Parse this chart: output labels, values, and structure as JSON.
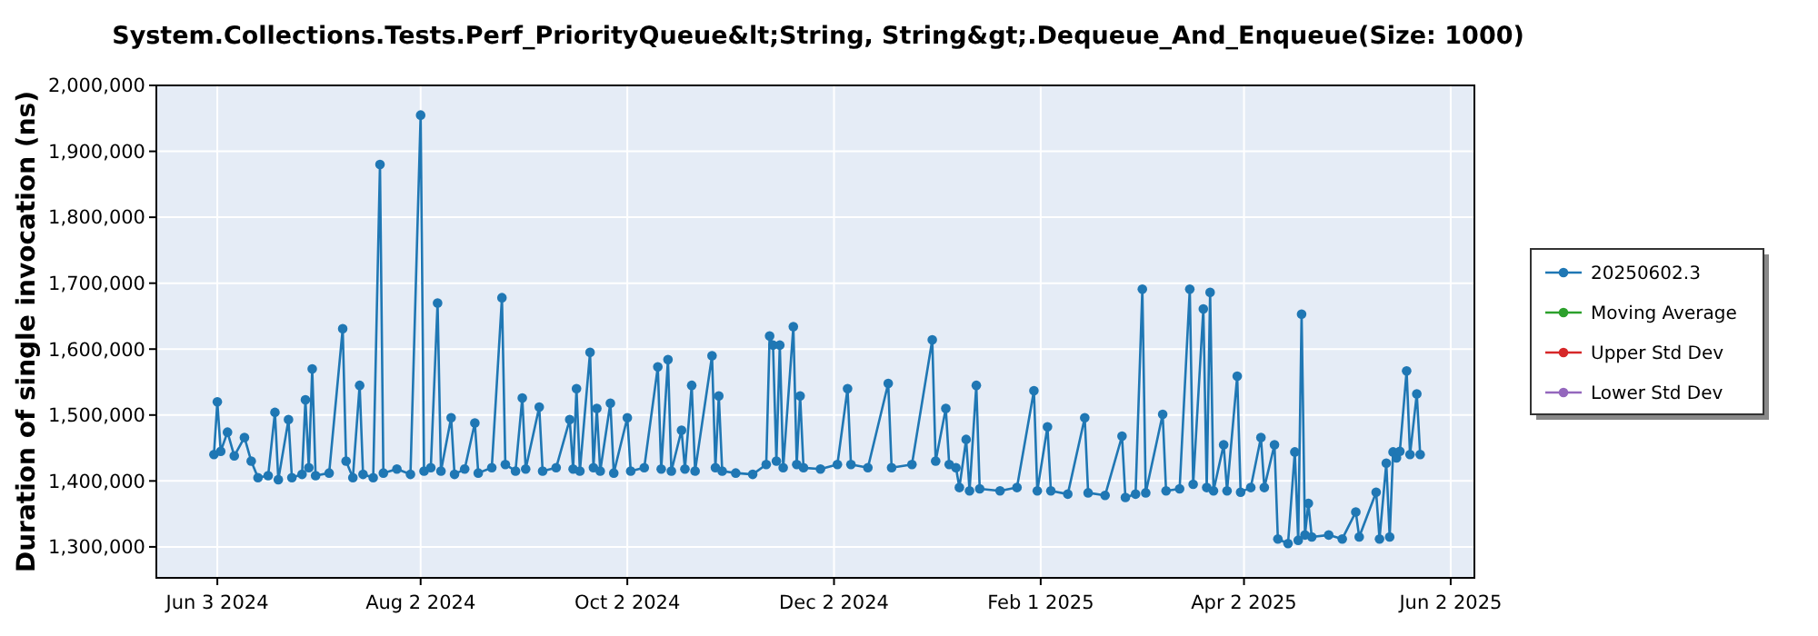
{
  "chart_data": {
    "type": "line",
    "title": "System.Collections.Tests.Perf_PriorityQueue&lt;String, String&gt;.Dequeue_And_Enqueue(Size: 1000)",
    "ylabel": "Duration of single invocation (ns)",
    "xlim": [
      "2024-05-16",
      "2025-06-09"
    ],
    "xticks": [
      {
        "value": "2024-06-03",
        "label": "Jun 3 2024"
      },
      {
        "value": "2024-08-02",
        "label": "Aug 2 2024"
      },
      {
        "value": "2024-10-02",
        "label": "Oct 2 2024"
      },
      {
        "value": "2024-12-02",
        "label": "Dec 2 2024"
      },
      {
        "value": "2025-02-01",
        "label": "Feb 1 2025"
      },
      {
        "value": "2025-04-02",
        "label": "Apr 2 2025"
      },
      {
        "value": "2025-06-02",
        "label": "Jun 2 2025"
      }
    ],
    "ylim": [
      1253000,
      2000000
    ],
    "yticks": [
      {
        "value": 1300000,
        "label": "1,300,000"
      },
      {
        "value": 1400000,
        "label": "1,400,000"
      },
      {
        "value": 1500000,
        "label": "1,500,000"
      },
      {
        "value": 1600000,
        "label": "1,600,000"
      },
      {
        "value": 1700000,
        "label": "1,700,000"
      },
      {
        "value": 1800000,
        "label": "1,800,000"
      },
      {
        "value": 1900000,
        "label": "1,900,000"
      },
      {
        "value": 2000000,
        "label": "2,000,000"
      }
    ],
    "grid": true,
    "legend": "right",
    "marker": "circle",
    "line_style": "solid",
    "series": [
      {
        "name": "20250602.3",
        "color": "#1f77b4",
        "x": [
          "2024-06-02",
          "2024-06-03",
          "2024-06-04",
          "2024-06-06",
          "2024-06-08",
          "2024-06-11",
          "2024-06-13",
          "2024-06-15",
          "2024-06-18",
          "2024-06-20",
          "2024-06-21",
          "2024-06-24",
          "2024-06-25",
          "2024-06-28",
          "2024-06-29",
          "2024-06-30",
          "2024-07-01",
          "2024-07-02",
          "2024-07-06",
          "2024-07-10",
          "2024-07-11",
          "2024-07-13",
          "2024-07-15",
          "2024-07-16",
          "2024-07-19",
          "2024-07-21",
          "2024-07-22",
          "2024-07-26",
          "2024-07-30",
          "2024-08-02",
          "2024-08-03",
          "2024-08-05",
          "2024-08-07",
          "2024-08-08",
          "2024-08-11",
          "2024-08-12",
          "2024-08-15",
          "2024-08-18",
          "2024-08-19",
          "2024-08-23",
          "2024-08-26",
          "2024-08-27",
          "2024-08-30",
          "2024-09-01",
          "2024-09-02",
          "2024-09-06",
          "2024-09-07",
          "2024-09-11",
          "2024-09-15",
          "2024-09-16",
          "2024-09-17",
          "2024-09-18",
          "2024-09-21",
          "2024-09-22",
          "2024-09-23",
          "2024-09-24",
          "2024-09-27",
          "2024-09-28",
          "2024-10-02",
          "2024-10-03",
          "2024-10-07",
          "2024-10-11",
          "2024-10-12",
          "2024-10-14",
          "2024-10-15",
          "2024-10-18",
          "2024-10-19",
          "2024-10-21",
          "2024-10-22",
          "2024-10-27",
          "2024-10-28",
          "2024-10-29",
          "2024-10-30",
          "2024-11-03",
          "2024-11-08",
          "2024-11-12",
          "2024-11-13",
          "2024-11-14",
          "2024-11-15",
          "2024-11-16",
          "2024-11-17",
          "2024-11-20",
          "2024-11-21",
          "2024-11-22",
          "2024-11-23",
          "2024-11-28",
          "2024-12-03",
          "2024-12-06",
          "2024-12-07",
          "2024-12-12",
          "2024-12-18",
          "2024-12-19",
          "2024-12-25",
          "2024-12-31",
          "2025-01-01",
          "2025-01-04",
          "2025-01-05",
          "2025-01-07",
          "2025-01-08",
          "2025-01-10",
          "2025-01-11",
          "2025-01-13",
          "2025-01-14",
          "2025-01-20",
          "2025-01-25",
          "2025-01-30",
          "2025-01-31",
          "2025-02-03",
          "2025-02-04",
          "2025-02-09",
          "2025-02-14",
          "2025-02-15",
          "2025-02-20",
          "2025-02-25",
          "2025-02-26",
          "2025-03-01",
          "2025-03-03",
          "2025-03-04",
          "2025-03-09",
          "2025-03-10",
          "2025-03-14",
          "2025-03-17",
          "2025-03-18",
          "2025-03-21",
          "2025-03-22",
          "2025-03-23",
          "2025-03-24",
          "2025-03-27",
          "2025-03-28",
          "2025-03-31",
          "2025-04-01",
          "2025-04-04",
          "2025-04-07",
          "2025-04-08",
          "2025-04-11",
          "2025-04-12",
          "2025-04-15",
          "2025-04-17",
          "2025-04-18",
          "2025-04-19",
          "2025-04-20",
          "2025-04-21",
          "2025-04-22",
          "2025-04-27",
          "2025-05-01",
          "2025-05-05",
          "2025-05-06",
          "2025-05-11",
          "2025-05-12",
          "2025-05-14",
          "2025-05-15",
          "2025-05-16",
          "2025-05-17",
          "2025-05-18",
          "2025-05-20",
          "2025-05-21",
          "2025-05-23",
          "2025-05-24"
        ],
        "values": [
          1440000,
          1520000,
          1445000,
          1474000,
          1438000,
          1466000,
          1430000,
          1405000,
          1408000,
          1504000,
          1402000,
          1493000,
          1405000,
          1410000,
          1523000,
          1420000,
          1570000,
          1408000,
          1412000,
          1631000,
          1430000,
          1405000,
          1545000,
          1410000,
          1405000,
          1880000,
          1412000,
          1418000,
          1410000,
          1955000,
          1415000,
          1420000,
          1670000,
          1415000,
          1496000,
          1410000,
          1418000,
          1488000,
          1412000,
          1420000,
          1678000,
          1425000,
          1415000,
          1526000,
          1418000,
          1512000,
          1415000,
          1420000,
          1493000,
          1418000,
          1540000,
          1415000,
          1595000,
          1420000,
          1510000,
          1415000,
          1518000,
          1412000,
          1496000,
          1415000,
          1420000,
          1573000,
          1418000,
          1584000,
          1415000,
          1477000,
          1418000,
          1545000,
          1415000,
          1590000,
          1420000,
          1529000,
          1415000,
          1412000,
          1410000,
          1425000,
          1620000,
          1606000,
          1430000,
          1606000,
          1420000,
          1634000,
          1425000,
          1529000,
          1420000,
          1418000,
          1425000,
          1540000,
          1425000,
          1420000,
          1548000,
          1420000,
          1425000,
          1614000,
          1430000,
          1510000,
          1425000,
          1420000,
          1390000,
          1463000,
          1385000,
          1545000,
          1388000,
          1385000,
          1390000,
          1537000,
          1385000,
          1482000,
          1385000,
          1380000,
          1496000,
          1382000,
          1378000,
          1468000,
          1375000,
          1380000,
          1691000,
          1382000,
          1501000,
          1385000,
          1388000,
          1691000,
          1395000,
          1661000,
          1390000,
          1686000,
          1385000,
          1455000,
          1385000,
          1559000,
          1383000,
          1390000,
          1466000,
          1390000,
          1455000,
          1312000,
          1305000,
          1444000,
          1310000,
          1653000,
          1318000,
          1366000,
          1315000,
          1318000,
          1312000,
          1353000,
          1315000,
          1383000,
          1312000,
          1427000,
          1315000,
          1444000,
          1435000,
          1445000,
          1567000,
          1440000,
          1532000,
          1440000
        ]
      },
      {
        "name": "Moving Average",
        "color": "#2ca02c"
      },
      {
        "name": "Upper Std Dev",
        "color": "#d62728"
      },
      {
        "name": "Lower Std Dev",
        "color": "#9467bd"
      }
    ]
  }
}
